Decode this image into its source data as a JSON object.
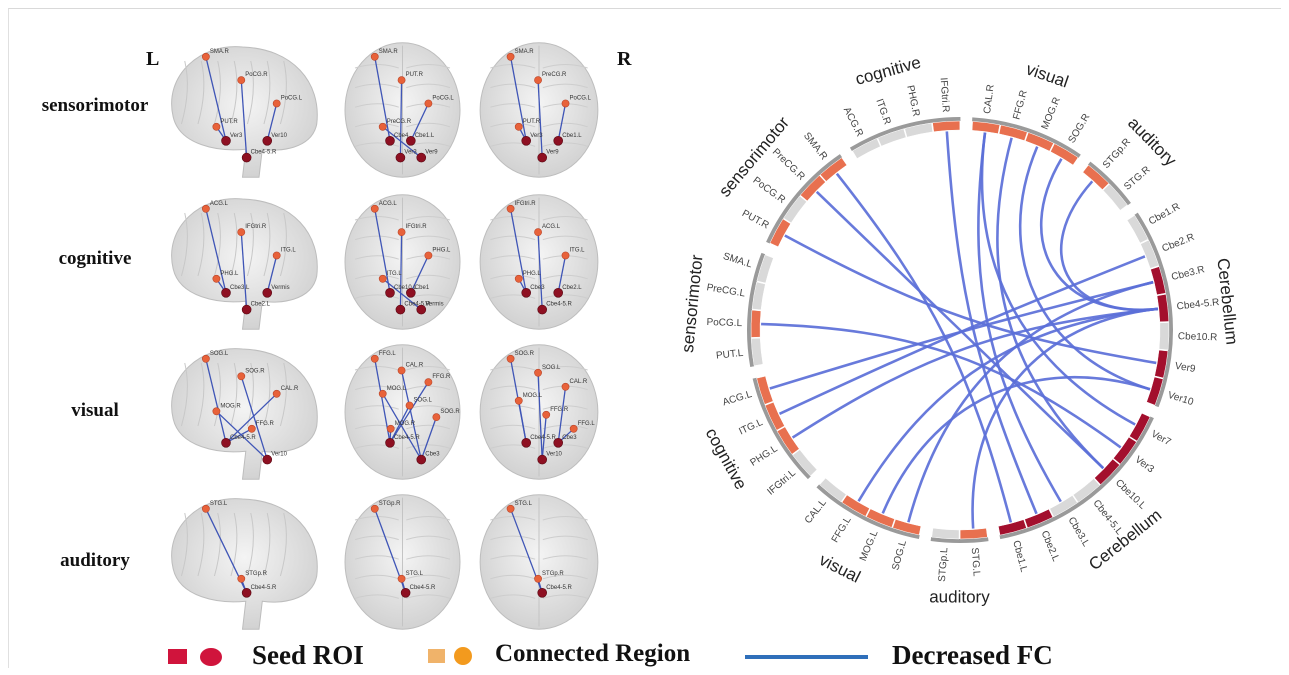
{
  "side_labels": {
    "left": "L",
    "right": "R"
  },
  "rows": [
    {
      "label": "sensorimotor",
      "panels": [
        {
          "nodes": [
            {
              "t": "SMA.R",
              "seed": false
            },
            {
              "t": "PoCG.R",
              "seed": false
            },
            {
              "t": "PoCG.L",
              "seed": false
            },
            {
              "t": "PUT.R",
              "seed": false
            },
            {
              "t": "Ver3",
              "seed": true
            },
            {
              "t": "Cbe4-5.R",
              "seed": true
            },
            {
              "t": "Ver10",
              "seed": true
            }
          ]
        },
        {
          "nodes": [
            {
              "t": "SMA.R",
              "seed": false
            },
            {
              "t": "PUT.R",
              "seed": false
            },
            {
              "t": "PoCG.L",
              "seed": false
            },
            {
              "t": "PreCG.R",
              "seed": false
            },
            {
              "t": "Cbe4",
              "seed": true
            },
            {
              "t": "Ver3",
              "seed": true
            },
            {
              "t": "Cbe1.L",
              "seed": true
            },
            {
              "t": "Ver9",
              "seed": true
            }
          ]
        },
        {
          "nodes": [
            {
              "t": "SMA.R",
              "seed": false
            },
            {
              "t": "PreCG.R",
              "seed": false
            },
            {
              "t": "PoCG.L",
              "seed": false
            },
            {
              "t": "PUT.R",
              "seed": false
            },
            {
              "t": "Ver3",
              "seed": true
            },
            {
              "t": "Ver9",
              "seed": true
            },
            {
              "t": "Cbe1.L",
              "seed": true
            }
          ]
        }
      ]
    },
    {
      "label": "cognitive",
      "panels": [
        {
          "nodes": [
            {
              "t": "ACG.L",
              "seed": false
            },
            {
              "t": "IFGtri.R",
              "seed": false
            },
            {
              "t": "ITG.L",
              "seed": false
            },
            {
              "t": "PHG.L",
              "seed": false
            },
            {
              "t": "Cbe3.L",
              "seed": true
            },
            {
              "t": "Cbe2.L",
              "seed": true
            },
            {
              "t": "Vermis",
              "seed": true
            }
          ]
        },
        {
          "nodes": [
            {
              "t": "ACG.L",
              "seed": false
            },
            {
              "t": "IFGtri.R",
              "seed": false
            },
            {
              "t": "PHG.L",
              "seed": false
            },
            {
              "t": "Cbe10.L",
              "seed": true
            },
            {
              "t": "Cbe4-5.R",
              "seed": true
            },
            {
              "t": "ITG.L",
              "seed": false
            },
            {
              "t": "Cbe1",
              "seed": true
            },
            {
              "t": "Vermis",
              "seed": true
            }
          ]
        },
        {
          "nodes": [
            {
              "t": "IFGtri.R",
              "seed": false
            },
            {
              "t": "ACG.L",
              "seed": false
            },
            {
              "t": "ITG.L",
              "seed": false
            },
            {
              "t": "PHG.L",
              "seed": false
            },
            {
              "t": "Cbe3",
              "seed": true
            },
            {
              "t": "Cbe4-5.R",
              "seed": true
            },
            {
              "t": "Cbe2.L",
              "seed": true
            }
          ]
        }
      ]
    },
    {
      "label": "visual",
      "panels": [
        {
          "nodes": [
            {
              "t": "SOG.L",
              "seed": false
            },
            {
              "t": "SOG.R",
              "seed": false
            },
            {
              "t": "CAL.R",
              "seed": false
            },
            {
              "t": "MOG.R",
              "seed": false
            },
            {
              "t": "FFG.R",
              "seed": false
            },
            {
              "t": "Cbe4-5.R",
              "seed": true
            },
            {
              "t": "Ver10",
              "seed": true
            }
          ]
        },
        {
          "nodes": [
            {
              "t": "Cbe4-5.R",
              "seed": true
            },
            {
              "t": "FFG.L",
              "seed": false
            },
            {
              "t": "Cbe3",
              "seed": true
            },
            {
              "t": "CAL.R",
              "seed": false
            },
            {
              "t": "FFG.R",
              "seed": false
            },
            {
              "t": "MOG.L",
              "seed": false
            },
            {
              "t": "SOG.L",
              "seed": false
            },
            {
              "t": "SOG.R",
              "seed": false
            },
            {
              "t": "MOG.R",
              "seed": false
            }
          ]
        },
        {
          "nodes": [
            {
              "t": "SOG.R",
              "seed": false
            },
            {
              "t": "SOG.L",
              "seed": false
            },
            {
              "t": "CAL.R",
              "seed": false
            },
            {
              "t": "MOG.L",
              "seed": false
            },
            {
              "t": "FFG.R",
              "seed": false
            },
            {
              "t": "FFG.L",
              "seed": false
            },
            {
              "t": "Cbe4-5.R",
              "seed": true
            },
            {
              "t": "Ver10",
              "seed": true
            },
            {
              "t": "Cbe3",
              "seed": true
            }
          ]
        }
      ]
    },
    {
      "label": "auditory",
      "panels": [
        {
          "nodes": [
            {
              "t": "STG.L",
              "seed": false
            },
            {
              "t": "STGp.R",
              "seed": false
            },
            {
              "t": "Cbe4-5.R",
              "seed": true
            }
          ]
        },
        {
          "nodes": [
            {
              "t": "STGp.R",
              "seed": false
            },
            {
              "t": "STG.L",
              "seed": false
            },
            {
              "t": "Cbe4-5.R",
              "seed": true
            }
          ]
        },
        {
          "nodes": [
            {
              "t": "STG.L",
              "seed": false
            },
            {
              "t": "STGp.R",
              "seed": false
            },
            {
              "t": "Cbe4-5.R",
              "seed": true
            }
          ]
        }
      ]
    }
  ],
  "chord": {
    "groups": [
      {
        "name": "sensorimotor",
        "side": "L"
      },
      {
        "name": "sensorimotor",
        "side": "R"
      },
      {
        "name": "cognitive",
        "side": "R"
      },
      {
        "name": "visual",
        "side": "R"
      },
      {
        "name": "auditory",
        "side": "R"
      },
      {
        "name": "Cerebellum",
        "side": "R"
      },
      {
        "name": "Cerebellum",
        "side": "L"
      },
      {
        "name": "auditory",
        "side": "L"
      },
      {
        "name": "visual",
        "side": "L"
      },
      {
        "name": "cognitive",
        "side": "L"
      }
    ],
    "regions": [
      {
        "id": "PUT.L",
        "active": false
      },
      {
        "id": "PoCG.L",
        "active": true
      },
      {
        "id": "PreCG.L",
        "active": false
      },
      {
        "id": "SMA.L",
        "active": false
      },
      {
        "id": "PUT.R",
        "active": true
      },
      {
        "id": "PoCG.R",
        "active": false
      },
      {
        "id": "PreCG.R",
        "active": true
      },
      {
        "id": "SMA.R",
        "active": true
      },
      {
        "id": "ACG.R",
        "active": false
      },
      {
        "id": "ITG.R",
        "active": false
      },
      {
        "id": "PHG.R",
        "active": false
      },
      {
        "id": "IFGtri.R",
        "active": true
      },
      {
        "id": "CAL.R",
        "active": true
      },
      {
        "id": "FFG.R",
        "active": true
      },
      {
        "id": "MOG.R",
        "active": true
      },
      {
        "id": "SOG.R",
        "active": true
      },
      {
        "id": "STGp.R",
        "active": true
      },
      {
        "id": "STG.R",
        "active": false
      },
      {
        "id": "Cbe1.R",
        "active": false
      },
      {
        "id": "Cbe2.R",
        "active": false
      },
      {
        "id": "Cbe3.R",
        "active": true
      },
      {
        "id": "Cbe4-5.R",
        "active": true
      },
      {
        "id": "Cbe10.R",
        "active": false
      },
      {
        "id": "Ver9",
        "active": true
      },
      {
        "id": "Ver10",
        "active": true
      },
      {
        "id": "Ver7",
        "active": true
      },
      {
        "id": "Ver3",
        "active": true
      },
      {
        "id": "Cbe10.L",
        "active": true
      },
      {
        "id": "Cbe4-5.L",
        "active": false
      },
      {
        "id": "Cbe3.L",
        "active": false
      },
      {
        "id": "Cbe2.L",
        "active": true
      },
      {
        "id": "Cbe1.L",
        "active": true
      },
      {
        "id": "STG.L",
        "active": true
      },
      {
        "id": "STGp.L",
        "active": false
      },
      {
        "id": "SOG.L",
        "active": true
      },
      {
        "id": "MOG.L",
        "active": true
      },
      {
        "id": "FFG.L",
        "active": true
      },
      {
        "id": "CAL.L",
        "active": false
      },
      {
        "id": "IFGtri.L",
        "active": false
      },
      {
        "id": "PHG.L",
        "active": true
      },
      {
        "id": "ITG.L",
        "active": true
      },
      {
        "id": "ACG.L",
        "active": true
      }
    ],
    "links": [
      [
        "PoCG.L",
        "Ver3"
      ],
      [
        "PUT.R",
        "Ver9"
      ],
      [
        "PreCG.R",
        "Cbe10.L"
      ],
      [
        "SMA.R",
        "Cbe1.L"
      ],
      [
        "IFGtri.R",
        "Cbe2.L"
      ],
      [
        "ACG.L",
        "Cbe3.R"
      ],
      [
        "ITG.L",
        "Cbe2.R"
      ],
      [
        "PHG.L",
        "Cbe4-5.R"
      ],
      [
        "CAL.R",
        "Cbe3.L"
      ],
      [
        "FFG.R",
        "Cbe10.L"
      ],
      [
        "MOG.R",
        "Ver10"
      ],
      [
        "SOG.R",
        "Cbe4-5.R"
      ],
      [
        "FFG.L",
        "Cbe4-5.R"
      ],
      [
        "MOG.L",
        "Ver10"
      ],
      [
        "SOG.L",
        "Cbe3.R"
      ],
      [
        "CAL.R",
        "Ver7"
      ],
      [
        "STGp.R",
        "Cbe4-5.R"
      ],
      [
        "STG.L",
        "Cbe4-5.R"
      ]
    ],
    "colors": {
      "active": "#e8704f",
      "inactive": "#d9d9d9",
      "cerebellum": "#a30f2d",
      "link": "#5b6fd8",
      "ring": "#9a9a9a"
    }
  },
  "legend": {
    "seed_label": "Seed ROI",
    "connected_label": "Connected Region",
    "fc_label": "Decreased FC",
    "colors": {
      "seed": "#d0143c",
      "connected_square": "#f0b36a",
      "connected_circle": "#f39a1e",
      "fc_line": "#2f6fba"
    }
  }
}
